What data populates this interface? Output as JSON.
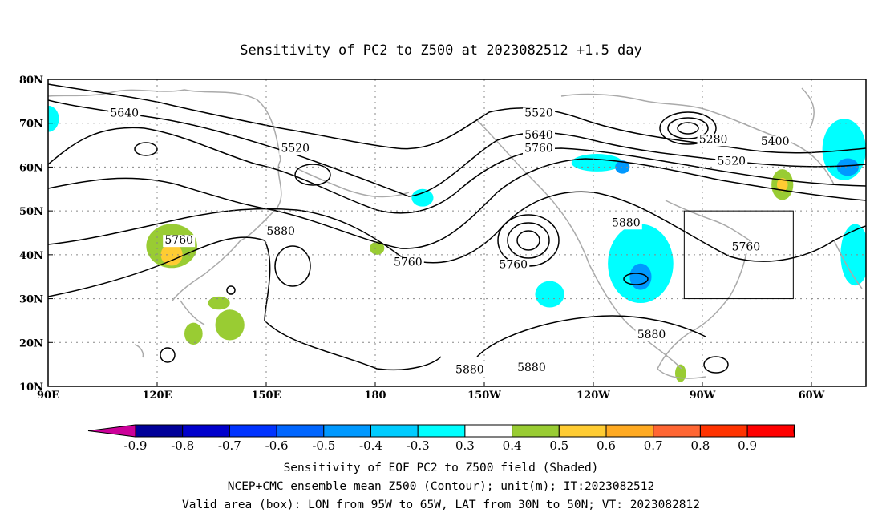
{
  "title": "Sensitivity of PC2 to Z500 at 2023082512 +1.5 day",
  "map": {
    "lon_ticks": [
      "90E",
      "120E",
      "150E",
      "180",
      "150W",
      "120W",
      "90W",
      "60W"
    ],
    "lat_ticks": [
      "80N",
      "70N",
      "60N",
      "50N",
      "40N",
      "30N",
      "20N",
      "10N"
    ],
    "lon_range": [
      90,
      315
    ],
    "lat_range": [
      10,
      80
    ],
    "grid": "dotted",
    "valid_box": {
      "lon": [
        265,
        295
      ],
      "lat": [
        30,
        50
      ]
    },
    "contour_labels": [
      {
        "text": "5640",
        "lon": 111,
        "lat": 71.5
      },
      {
        "text": "5520",
        "lon": 158,
        "lat": 63.5
      },
      {
        "text": "5520",
        "lon": 225,
        "lat": 71.5
      },
      {
        "text": "5640",
        "lon": 225,
        "lat": 66.5
      },
      {
        "text": "5760",
        "lon": 225,
        "lat": 63.5
      },
      {
        "text": "5280",
        "lon": 273,
        "lat": 65.5
      },
      {
        "text": "5400",
        "lon": 290,
        "lat": 65
      },
      {
        "text": "5520",
        "lon": 278,
        "lat": 60.5
      },
      {
        "text": "5760",
        "lon": 126,
        "lat": 42.5
      },
      {
        "text": "5880",
        "lon": 154,
        "lat": 44.5
      },
      {
        "text": "5760",
        "lon": 189,
        "lat": 37.5
      },
      {
        "text": "5760",
        "lon": 218,
        "lat": 37
      },
      {
        "text": "5880",
        "lon": 249,
        "lat": 46.5
      },
      {
        "text": "5760",
        "lon": 282,
        "lat": 41
      },
      {
        "text": "5880",
        "lon": 256,
        "lat": 21
      },
      {
        "text": "5880",
        "lon": 206,
        "lat": 13
      },
      {
        "text": "5880",
        "lon": 223,
        "lat": 13.5
      }
    ],
    "shaded_regions": [
      {
        "color": "#00ffff",
        "lon": 90,
        "lat": 71,
        "rx": 3,
        "ry": 3
      },
      {
        "color": "#99cc33",
        "lon": 124,
        "lat": 42,
        "rx": 7,
        "ry": 5
      },
      {
        "color": "#ffcc33",
        "lon": 124,
        "lat": 40,
        "rx": 3,
        "ry": 2.5
      },
      {
        "color": "#99cc33",
        "lon": 137,
        "lat": 29,
        "rx": 3,
        "ry": 1.5
      },
      {
        "color": "#99cc33",
        "lon": 140,
        "lat": 24,
        "rx": 4,
        "ry": 3.5
      },
      {
        "color": "#99cc33",
        "lon": 130,
        "lat": 22,
        "rx": 2.5,
        "ry": 2.5
      },
      {
        "color": "#99cc33",
        "lon": 180.5,
        "lat": 41.5,
        "rx": 2,
        "ry": 1.5
      },
      {
        "color": "#00ffff",
        "lon": 193,
        "lat": 53,
        "rx": 3,
        "ry": 2
      },
      {
        "color": "#00ffff",
        "lon": 228,
        "lat": 31,
        "rx": 4,
        "ry": 3
      },
      {
        "color": "#00ffff",
        "lon": 253,
        "lat": 38,
        "rx": 9,
        "ry": 9
      },
      {
        "color": "#0099ff",
        "lon": 253,
        "lat": 35,
        "rx": 3,
        "ry": 3
      },
      {
        "color": "#00ffff",
        "lon": 241,
        "lat": 61,
        "rx": 7,
        "ry": 2
      },
      {
        "color": "#0099ff",
        "lon": 248,
        "lat": 60,
        "rx": 2,
        "ry": 1.5
      },
      {
        "color": "#00ffff",
        "lon": 309,
        "lat": 64,
        "rx": 6,
        "ry": 7
      },
      {
        "color": "#0099ff",
        "lon": 310,
        "lat": 60,
        "rx": 3,
        "ry": 2
      },
      {
        "color": "#99cc33",
        "lon": 292,
        "lat": 56,
        "rx": 3,
        "ry": 3.5
      },
      {
        "color": "#ffcc33",
        "lon": 292,
        "lat": 56,
        "rx": 1.5,
        "ry": 1.5
      },
      {
        "color": "#00ffff",
        "lon": 312,
        "lat": 40,
        "rx": 4,
        "ry": 7
      },
      {
        "color": "#99cc33",
        "lon": 264,
        "lat": 13,
        "rx": 1.5,
        "ry": 2
      }
    ]
  },
  "colorbar": {
    "labels": [
      "-0.9",
      "-0.8",
      "-0.7",
      "-0.6",
      "-0.5",
      "-0.4",
      "-0.3",
      "0.3",
      "0.4",
      "0.5",
      "0.6",
      "0.7",
      "0.8",
      "0.9"
    ],
    "colors": [
      "#000099",
      "#0000cc",
      "#0033ff",
      "#0066ff",
      "#0099ff",
      "#00ccff",
      "#00ffff",
      "#ffffff",
      "#99cc33",
      "#ffcc33",
      "#ffaa22",
      "#ff6633",
      "#ff3300",
      "#ff0000"
    ],
    "low_extend_color": "#cc0099",
    "high_extend_color": "#ff99cc"
  },
  "captions": [
    "Sensitivity of EOF PC2 to Z500 field (Shaded)",
    "NCEP+CMC ensemble mean Z500 (Contour); unit(m); IT:2023082512",
    "Valid area (box): LON from 95W to 65W, LAT from 30N to 50N; VT: 2023082812"
  ]
}
